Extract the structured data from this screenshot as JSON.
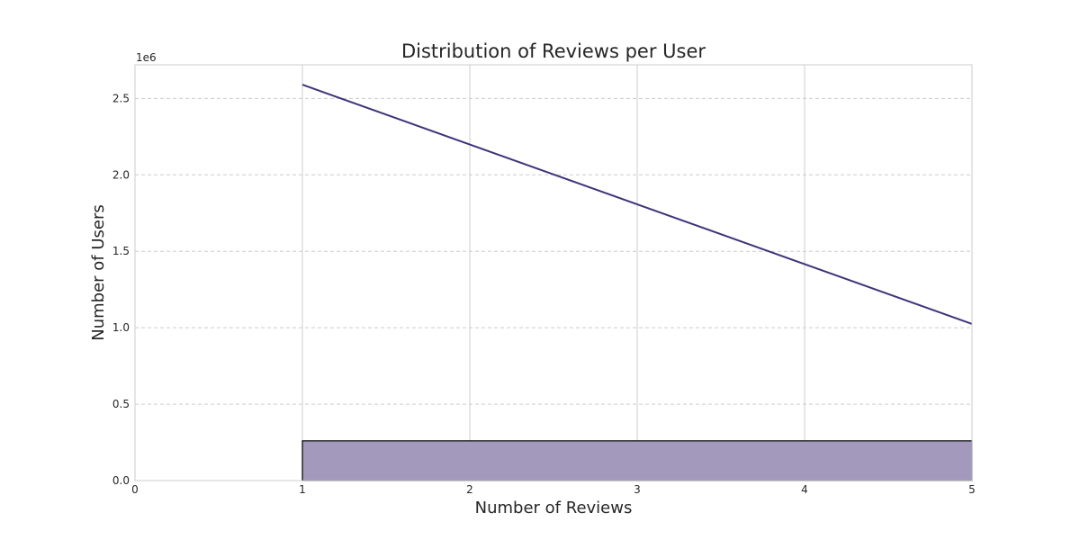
{
  "chart_data": {
    "type": "bar",
    "title": "Distribution of Reviews per User",
    "xlabel": "Number of Reviews",
    "ylabel": "Number of Users",
    "y_offset_label": "1e6",
    "xlim": [
      0,
      5
    ],
    "ylim": [
      0,
      2720000
    ],
    "x_ticks": [
      0,
      1,
      2,
      3,
      4,
      5
    ],
    "x_tick_labels": [
      "0",
      "1",
      "2",
      "3",
      "4",
      "5"
    ],
    "y_ticks": [
      0,
      500000,
      1000000,
      1500000,
      2000000,
      2500000
    ],
    "y_tick_labels": [
      "0.0",
      "0.5",
      "1.0",
      "1.5",
      "2.0",
      "2.5"
    ],
    "grid": true,
    "bars": [
      {
        "x_start": 1,
        "x_end": 5,
        "value": 260000
      }
    ],
    "line": {
      "x": [
        1,
        5
      ],
      "y": [
        2590000,
        1025000
      ]
    },
    "colors": {
      "bar_fill": "#a399bd",
      "bar_edge": "#000000",
      "line": "#3f3479",
      "grid": "#cccccc",
      "axis": "#cccccc"
    }
  }
}
